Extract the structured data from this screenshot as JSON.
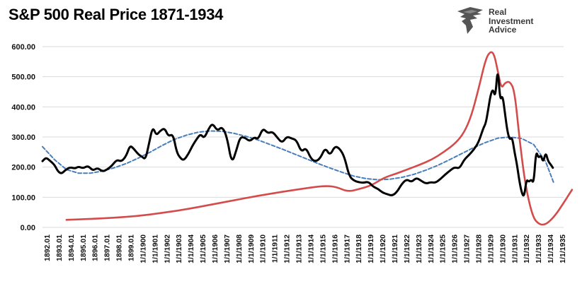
{
  "chart_data": {
    "type": "line",
    "title": "S&P 500 Real Price 1871-1934",
    "xlabel": "",
    "ylabel": "",
    "ylim": [
      0,
      600
    ],
    "yticks": [
      "0.00",
      "100.00",
      "200.00",
      "300.00",
      "400.00",
      "500.00",
      "600.00"
    ],
    "grid": true,
    "legend": "none",
    "x_tick_labels": [
      "1892.01",
      "1893.01",
      "1894.01",
      "1895.01",
      "1896.01",
      "1897.01",
      "1898.01",
      "1899.01",
      "1/1/1900",
      "1/1/1901",
      "1/1/1902",
      "1/1/1903",
      "1/1/1904",
      "1/1/1905",
      "1/1/1906",
      "1/1/1907",
      "1/1/1908",
      "1/1/1909",
      "1/1/1910",
      "1/1/1911",
      "1/1/1912",
      "1/1/1913",
      "1/1/1914",
      "1/1/1915",
      "1/1/1916",
      "1/1/1917",
      "1/1/1918",
      "1/1/1919",
      "1/1/1920",
      "1/1/1921",
      "1/1/1922",
      "1/1/1923",
      "1/1/1924",
      "1/1/1925",
      "1/1/1926",
      "1/1/1927",
      "1/1/1928",
      "1/1/1929",
      "1/1/1930",
      "1/1/1931",
      "1/1/1932",
      "1/1/1933",
      "1/1/1934",
      "1/1/1935"
    ],
    "series": [
      {
        "color": "#000000",
        "style": "solid",
        "x": [
          1892.0,
          1892.3,
          1892.6,
          1893.0,
          1893.3,
          1893.6,
          1893.9,
          1894.3,
          1894.7,
          1895.0,
          1895.4,
          1895.8,
          1896.2,
          1896.6,
          1897.0,
          1897.4,
          1897.8,
          1898.2,
          1898.6,
          1899.0,
          1899.3,
          1899.6,
          1900.0,
          1900.3,
          1900.6,
          1900.9,
          1901.2,
          1901.5,
          1901.8,
          1902.2,
          1902.5,
          1902.9,
          1903.2,
          1903.5,
          1903.8,
          1904.2,
          1904.5,
          1904.9,
          1905.2,
          1905.5,
          1905.9,
          1906.2,
          1906.6,
          1907.0,
          1907.4,
          1907.8,
          1908.2,
          1908.5,
          1908.9,
          1909.3,
          1909.7,
          1910.0,
          1910.4,
          1910.8,
          1911.2,
          1911.6,
          1912.0,
          1912.4,
          1912.8,
          1913.2,
          1913.6,
          1914.0,
          1914.4,
          1914.8,
          1915.2,
          1915.6,
          1916.0,
          1916.4,
          1916.8,
          1917.2,
          1917.6,
          1918.0,
          1918.4,
          1918.8,
          1919.2,
          1919.6,
          1920.0,
          1920.4,
          1920.8,
          1921.2,
          1921.6,
          1922.0,
          1922.4,
          1922.8,
          1923.2,
          1923.6,
          1924.0,
          1924.4,
          1924.8,
          1925.2,
          1925.6,
          1926.0,
          1926.4,
          1926.8,
          1927.2,
          1927.6,
          1928.0,
          1928.4,
          1928.8,
          1929.0,
          1929.2,
          1929.4,
          1929.6,
          1929.8,
          1930.0,
          1930.2,
          1930.4,
          1930.6,
          1930.8,
          1931.0,
          1931.2,
          1931.4,
          1931.6,
          1931.8,
          1932.0,
          1932.2,
          1932.4,
          1932.6,
          1932.8,
          1933.0,
          1933.2,
          1933.4,
          1933.6,
          1933.8,
          1934.0,
          1934.2,
          1934.4,
          1934.6
        ],
        "y": [
          220,
          232,
          222,
          208,
          185,
          178,
          190,
          200,
          195,
          202,
          196,
          205,
          188,
          198,
          185,
          192,
          205,
          225,
          218,
          238,
          272,
          262,
          242,
          235,
          225,
          280,
          335,
          305,
          320,
          330,
          302,
          310,
          250,
          230,
          222,
          245,
          270,
          295,
          310,
          295,
          330,
          345,
          320,
          335,
          300,
          210,
          258,
          300,
          298,
          285,
          300,
          292,
          330,
          312,
          318,
          298,
          280,
          302,
          295,
          290,
          250,
          265,
          228,
          218,
          230,
          265,
          238,
          270,
          262,
          235,
          170,
          155,
          150,
          148,
          152,
          135,
          128,
          115,
          110,
          105,
          118,
          145,
          160,
          150,
          165,
          155,
          145,
          150,
          148,
          160,
          175,
          188,
          200,
          195,
          225,
          240,
          258,
          282,
          330,
          345,
          390,
          440,
          460,
          430,
          535,
          420,
          440,
          380,
          320,
          290,
          300,
          250,
          210,
          155,
          115,
          100,
          160,
          150,
          160,
          145,
          255,
          230,
          240,
          215,
          250,
          220,
          210,
          198
        ],
        "series_name": ""
      },
      {
        "color": "#d44b4b",
        "style": "solid",
        "x": [
          1894.0,
          1896.0,
          1898.0,
          1900.0,
          1902.0,
          1904.0,
          1906.0,
          1908.0,
          1910.0,
          1912.0,
          1914.0,
          1915.5,
          1916.5,
          1917.5,
          1918.5,
          1919.5,
          1920.5,
          1921.5,
          1922.5,
          1923.5,
          1924.5,
          1925.5,
          1926.5,
          1927.2,
          1927.8,
          1928.4,
          1929.0,
          1929.4,
          1929.7,
          1930.0,
          1930.3,
          1930.6,
          1931.0,
          1931.4,
          1931.8,
          1932.2,
          1932.6,
          1933.0,
          1933.4,
          1933.8,
          1934.2,
          1934.8,
          1935.4,
          1936.2
        ],
        "y": [
          25,
          28,
          32,
          38,
          48,
          60,
          75,
          90,
          105,
          118,
          130,
          138,
          135,
          118,
          128,
          140,
          165,
          178,
          193,
          208,
          225,
          250,
          280,
          315,
          370,
          460,
          560,
          585,
          575,
          520,
          460,
          480,
          485,
          455,
          300,
          170,
          85,
          30,
          12,
          8,
          15,
          40,
          75,
          125
        ],
        "series_name": ""
      },
      {
        "color": "#4a7ebb",
        "style": "dashed",
        "x": [
          1892.0,
          1893.0,
          1894.0,
          1895.0,
          1896.0,
          1897.0,
          1898.0,
          1899.0,
          1900.0,
          1901.0,
          1902.0,
          1903.0,
          1904.0,
          1905.0,
          1906.0,
          1907.0,
          1908.0,
          1909.0,
          1910.0,
          1911.0,
          1912.0,
          1913.0,
          1914.0,
          1915.0,
          1916.0,
          1917.0,
          1918.0,
          1919.0,
          1920.0,
          1921.0,
          1922.0,
          1923.0,
          1924.0,
          1925.0,
          1926.0,
          1927.0,
          1928.0,
          1929.0,
          1930.0,
          1931.0,
          1932.0,
          1933.0,
          1934.0,
          1934.7
        ],
        "y": [
          268,
          225,
          192,
          180,
          180,
          187,
          198,
          212,
          230,
          250,
          272,
          292,
          306,
          316,
          320,
          319,
          312,
          302,
          290,
          275,
          260,
          244,
          228,
          212,
          197,
          183,
          170,
          162,
          158,
          160,
          166,
          176,
          190,
          206,
          225,
          245,
          265,
          282,
          296,
          300,
          295,
          275,
          218,
          145
        ],
        "series_name": ""
      }
    ]
  },
  "branding": {
    "line1": "Real",
    "line2": "Investment",
    "line3": "Advice"
  }
}
